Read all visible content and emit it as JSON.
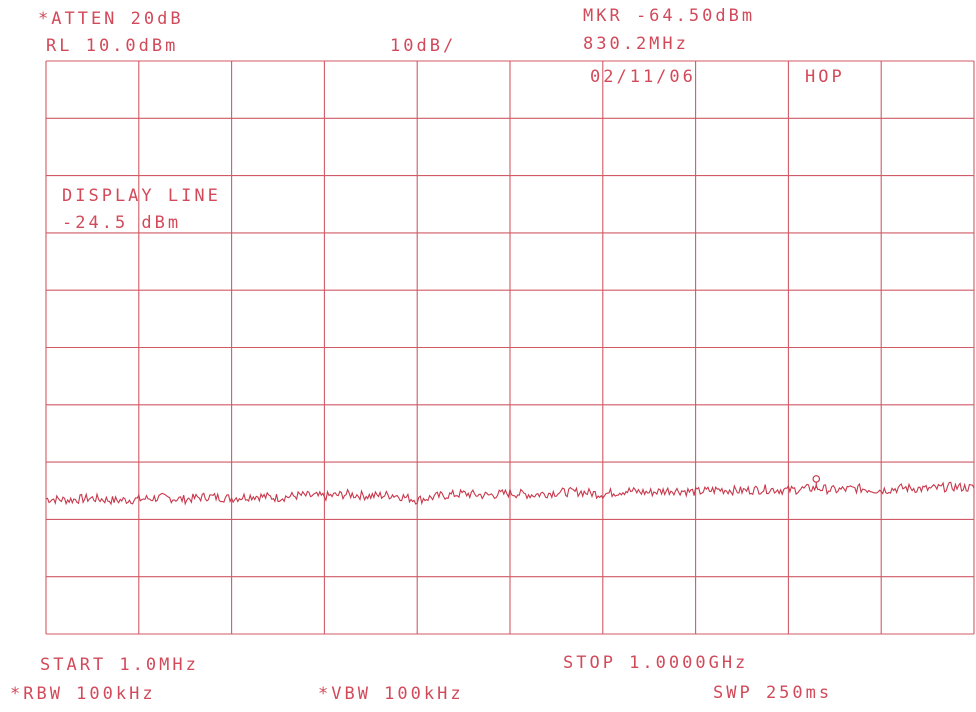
{
  "header": {
    "atten": "*ATTEN 20dB",
    "ref_level": "RL 10.0dBm",
    "scale": "10dB/",
    "marker_level": "MKR -64.50dBm",
    "marker_freq": "830.2MHz",
    "date": "02/11/06",
    "tag": "HOP"
  },
  "annotation": {
    "line1": "DISPLAY LINE",
    "line2": "-24.5 dBm"
  },
  "footer": {
    "start": "START 1.0MHz",
    "stop": "STOP 1.0000GHz",
    "rbw": "*RBW 100kHz",
    "vbw": "*VBW 100kHz",
    "sweep": "SWP 250ms"
  },
  "colors": {
    "ink": "#d24a5a",
    "trace": "#c8384c"
  },
  "chart_data": {
    "type": "line",
    "title": "",
    "xlabel": "",
    "ylabel": "",
    "x_unit": "MHz",
    "y_unit": "dBm",
    "xlim": [
      1.0,
      1000.0
    ],
    "ylim": [
      -90,
      10
    ],
    "grid": true,
    "grid_divisions": {
      "x": 10,
      "y": 10
    },
    "reference_level": 10.0,
    "scale_per_division": 10,
    "display_line": -24.5,
    "marker": {
      "x": 830.2,
      "y": -64.5
    },
    "series": [
      {
        "x": [
          1,
          25,
          50,
          75,
          100,
          125,
          150,
          175,
          200,
          225,
          250,
          275,
          300,
          325,
          350,
          375,
          400,
          425,
          450,
          475,
          500,
          525,
          550,
          575,
          600,
          625,
          650,
          675,
          700,
          725,
          750,
          775,
          800,
          830.2,
          850,
          875,
          900,
          925,
          950,
          975,
          1000
        ],
        "values": [
          -66.4,
          -66.6,
          -66.3,
          -66.7,
          -66.5,
          -66.2,
          -66.5,
          -66.0,
          -66.3,
          -65.9,
          -66.2,
          -65.8,
          -66.0,
          -65.6,
          -65.9,
          -65.7,
          -66.6,
          -65.9,
          -65.5,
          -65.8,
          -65.4,
          -65.7,
          -65.3,
          -65.2,
          -65.6,
          -65.0,
          -65.3,
          -64.9,
          -65.2,
          -64.8,
          -65.0,
          -64.7,
          -64.9,
          -64.5,
          -64.9,
          -64.6,
          -64.9,
          -64.5,
          -64.7,
          -64.3,
          -64.5
        ]
      }
    ]
  }
}
